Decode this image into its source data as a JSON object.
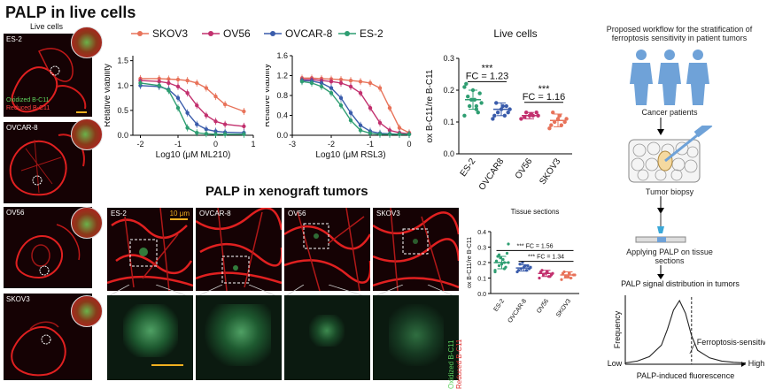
{
  "titles": {
    "live": "PALP in live cells",
    "xeno": "PALP in xenograft tumors",
    "live_cells_label": "Live cells"
  },
  "left_panels": {
    "labels": [
      "ES-2",
      "OVCAR-8",
      "OV56",
      "SKOV3"
    ],
    "oxidized": "Oxidized B-C11",
    "reduced": "Reduced B-C11"
  },
  "xeno_panels": {
    "labels": [
      "ES-2",
      "OVCAR-8",
      "OV56",
      "SKOV3"
    ],
    "scalebar": "10 μm",
    "oxidized": "Oxidized B-C11",
    "reduced": "Reduced B-C11"
  },
  "legend": [
    {
      "name": "SKOV3",
      "color": "#e8735a"
    },
    {
      "name": "OV56",
      "color": "#c2306e"
    },
    {
      "name": "OVCAR-8",
      "color": "#3a5cab"
    },
    {
      "name": "ES-2",
      "color": "#2f9e72"
    }
  ],
  "chart_data": [
    {
      "type": "line",
      "title": "",
      "xlabel": "Log10 (μM ML210)",
      "ylabel": "Relative viability",
      "xlim": [
        -2.2,
        1
      ],
      "ylim": [
        0,
        1.6
      ],
      "xticks": [
        -2,
        -1,
        0,
        1
      ],
      "yticks": [
        0.0,
        0.5,
        1.0,
        1.5
      ],
      "xtick_labels": [
        "-2",
        "-1",
        "0",
        "1"
      ],
      "ytick_labels": [
        "0.0",
        "0.5",
        "1.0",
        "1.5"
      ],
      "x": [
        -2.0,
        -1.5,
        -1.25,
        -1.0,
        -0.75,
        -0.5,
        -0.25,
        0.0,
        0.25,
        0.75
      ],
      "series": [
        {
          "name": "SKOV3",
          "values": [
            1.14,
            1.14,
            1.13,
            1.12,
            1.1,
            1.05,
            0.95,
            0.78,
            0.62,
            0.48
          ]
        },
        {
          "name": "OV56",
          "values": [
            1.1,
            1.08,
            1.05,
            0.98,
            0.85,
            0.6,
            0.4,
            0.28,
            0.22,
            0.18
          ]
        },
        {
          "name": "OVCAR-8",
          "values": [
            1.0,
            0.98,
            0.92,
            0.75,
            0.45,
            0.22,
            0.12,
            0.08,
            0.06,
            0.05
          ]
        },
        {
          "name": "ES-2",
          "values": [
            1.05,
            1.0,
            0.9,
            0.55,
            0.15,
            0.05,
            0.03,
            0.02,
            0.02,
            0.02
          ]
        }
      ]
    },
    {
      "type": "line",
      "title": "",
      "xlabel": "Log10 (μM RSL3)",
      "ylabel": "Relative viability",
      "xlim": [
        -3,
        0
      ],
      "ylim": [
        0,
        1.6
      ],
      "xticks": [
        -3,
        -2,
        -1,
        0
      ],
      "yticks": [
        0.0,
        0.4,
        0.8,
        1.2,
        1.6
      ],
      "xtick_labels": [
        "-3",
        "-2",
        "-1",
        "0"
      ],
      "ytick_labels": [
        "0.0",
        "0.4",
        "0.8",
        "1.2",
        "1.6"
      ],
      "x": [
        -2.75,
        -2.5,
        -2.25,
        -2.0,
        -1.75,
        -1.5,
        -1.25,
        -1.0,
        -0.75,
        -0.5,
        -0.25,
        0.0
      ],
      "series": [
        {
          "name": "SKOV3",
          "values": [
            1.15,
            1.15,
            1.14,
            1.13,
            1.12,
            1.1,
            1.08,
            1.05,
            0.95,
            0.55,
            0.15,
            0.05
          ]
        },
        {
          "name": "OV56",
          "values": [
            1.12,
            1.12,
            1.1,
            1.08,
            1.05,
            0.98,
            0.85,
            0.55,
            0.25,
            0.1,
            0.05,
            0.03
          ]
        },
        {
          "name": "OVCAR-8",
          "values": [
            1.1,
            1.09,
            1.05,
            0.95,
            0.75,
            0.45,
            0.2,
            0.08,
            0.04,
            0.03,
            0.02,
            0.02
          ]
        },
        {
          "name": "ES-2",
          "values": [
            1.08,
            1.05,
            0.98,
            0.85,
            0.6,
            0.3,
            0.1,
            0.04,
            0.02,
            0.02,
            0.02,
            0.02
          ]
        }
      ]
    },
    {
      "type": "scatter",
      "title": "Live cells",
      "ylabel": "ox B-C11/re B-C11",
      "categories": [
        "ES-2",
        "OVCAR8",
        "OV56",
        "SKOV3"
      ],
      "ylim": [
        0,
        0.3
      ],
      "yticks": [
        0.0,
        0.1,
        0.2,
        0.3
      ],
      "ytick_labels": [
        "0.0",
        "0.1",
        "0.2",
        "0.3"
      ],
      "means": [
        0.17,
        0.14,
        0.12,
        0.105
      ],
      "sds": [
        0.03,
        0.02,
        0.01,
        0.02
      ],
      "points": [
        [
          0.12,
          0.14,
          0.15,
          0.16,
          0.17,
          0.18,
          0.19,
          0.2,
          0.22,
          0.13,
          0.17,
          0.21,
          0.15
        ],
        [
          0.11,
          0.12,
          0.13,
          0.14,
          0.15,
          0.16,
          0.13,
          0.14,
          0.12,
          0.15
        ],
        [
          0.11,
          0.12,
          0.13,
          0.12,
          0.125,
          0.115,
          0.13,
          0.12
        ],
        [
          0.08,
          0.09,
          0.1,
          0.11,
          0.12,
          0.13,
          0.1,
          0.11,
          0.09
        ]
      ],
      "colors": [
        "#2f9e72",
        "#3a5cab",
        "#c2306e",
        "#e8735a"
      ],
      "annotations": [
        {
          "text": "***",
          "between": [
            0,
            1
          ],
          "y": 0.26
        },
        {
          "text": "FC = 1.23",
          "between": [
            0,
            1
          ],
          "y": 0.235
        },
        {
          "text": "***",
          "between": [
            2,
            3
          ],
          "y": 0.195
        },
        {
          "text": "FC = 1.16",
          "between": [
            2,
            3
          ],
          "y": 0.17
        }
      ]
    },
    {
      "type": "scatter",
      "title": "Tissue sections",
      "ylabel": "ox B-C11/re B-C11",
      "categories": [
        "ES-2",
        "OVCAR-8",
        "OV56",
        "SKOV3"
      ],
      "ylim": [
        0,
        0.4
      ],
      "yticks": [
        0.0,
        0.1,
        0.2,
        0.3,
        0.4
      ],
      "ytick_labels": [
        "0.0",
        "0.1",
        "0.2",
        "0.3",
        "0.4"
      ],
      "means": [
        0.2,
        0.165,
        0.13,
        0.12
      ],
      "sds": [
        0.04,
        0.02,
        0.02,
        0.02
      ],
      "points": [
        [
          0.14,
          0.16,
          0.18,
          0.2,
          0.22,
          0.24,
          0.26,
          0.19,
          0.21,
          0.17,
          0.23,
          0.15,
          0.2,
          0.25,
          0.32
        ],
        [
          0.14,
          0.15,
          0.16,
          0.17,
          0.18,
          0.19,
          0.16,
          0.17,
          0.15,
          0.18,
          0.2
        ],
        [
          0.1,
          0.11,
          0.12,
          0.13,
          0.14,
          0.15,
          0.12,
          0.13,
          0.14,
          0.11
        ],
        [
          0.09,
          0.1,
          0.11,
          0.12,
          0.13,
          0.14,
          0.12,
          0.11,
          0.13
        ]
      ],
      "colors": [
        "#2f9e72",
        "#3a5cab",
        "#c2306e",
        "#e8735a"
      ],
      "annotations": [
        {
          "text": "*** FC = 1.56",
          "between": [
            0,
            3
          ],
          "y": 0.295
        },
        {
          "text": "*** FC = 1.34",
          "between": [
            1,
            3
          ],
          "y": 0.225
        }
      ]
    },
    {
      "type": "line",
      "title": "PALP signal distribution in tumors",
      "xlabel": "PALP-induced fluorescence",
      "ylabel": "Frequency",
      "x_low": "Low",
      "x_high": "High",
      "threshold_label": "Ferroptosis-sensitive",
      "threshold_x": 0.55,
      "x": [
        0.0,
        0.1,
        0.2,
        0.3,
        0.35,
        0.4,
        0.45,
        0.5,
        0.55,
        0.6,
        0.7,
        0.8,
        0.9,
        1.0
      ],
      "values": [
        0.02,
        0.05,
        0.12,
        0.3,
        0.55,
        0.85,
        1.0,
        0.8,
        0.45,
        0.22,
        0.1,
        0.05,
        0.03,
        0.02
      ]
    }
  ],
  "workflow": {
    "title": "Proposed workflow for the stratification of ferroptosis sensitivity in patient tumors",
    "steps": [
      "Cancer patients",
      "Tumor biopsy",
      "Applying PALP on tissue sections"
    ]
  }
}
